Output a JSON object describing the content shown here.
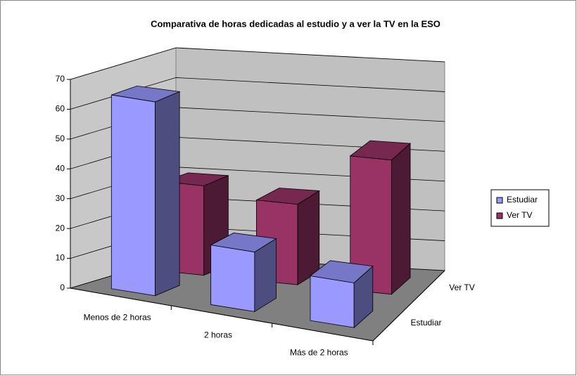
{
  "chart_data": {
    "type": "bar3d",
    "title": "Comparativa de horas dedicadas al estudio y a ver la TV en la ESO",
    "categories": [
      "Menos de 2 horas",
      "2 horas",
      "Más de 2 horas"
    ],
    "series": [
      {
        "name": "Estudiar",
        "color": "#9999ff",
        "values": [
          65,
          20,
          15
        ]
      },
      {
        "name": "Ver TV",
        "color": "#993366",
        "values": [
          30,
          27,
          45
        ]
      }
    ],
    "ylim": [
      0,
      70
    ],
    "yticks": [
      0,
      10,
      20,
      30,
      40,
      50,
      60,
      70
    ],
    "grid": true,
    "legend": "right"
  }
}
